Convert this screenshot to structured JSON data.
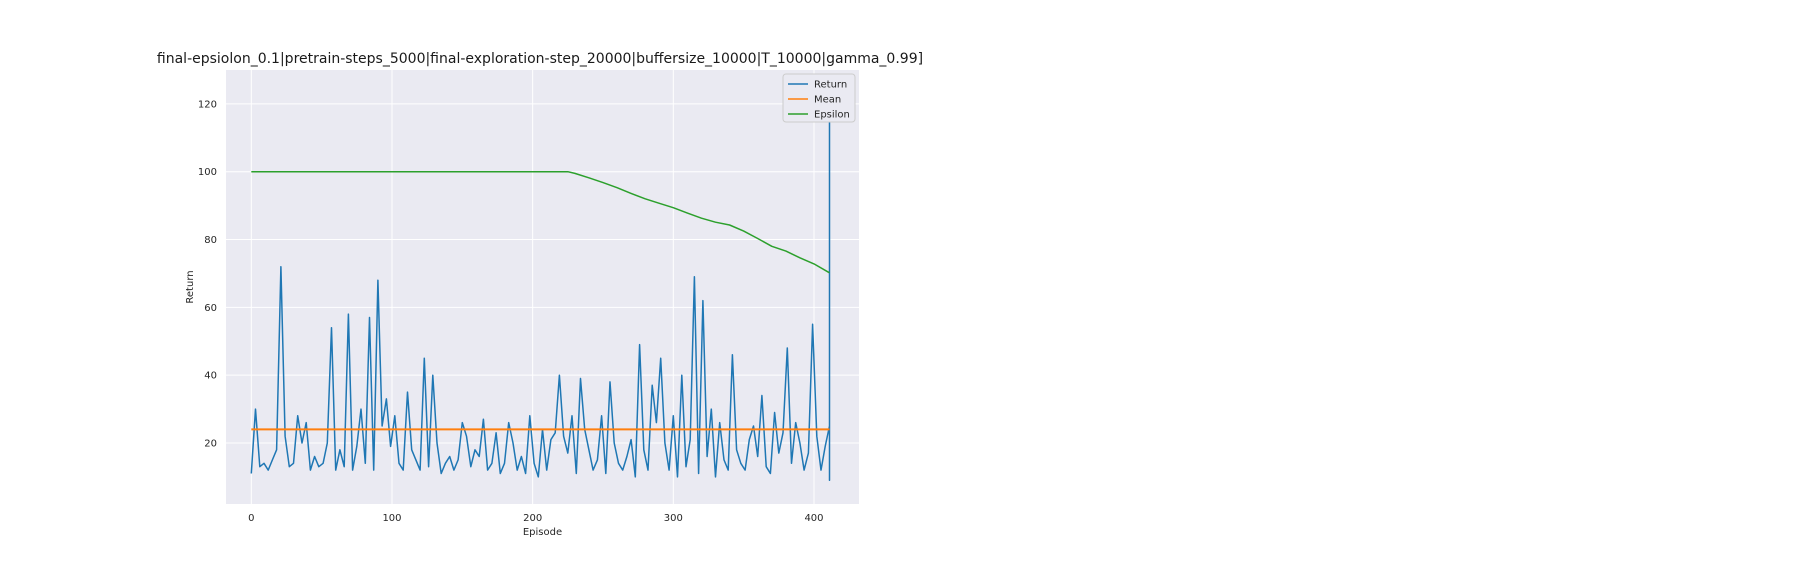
{
  "chart_data": {
    "type": "line",
    "title": "final-epsiolon_0.1|pretrain-steps_5000|final-exploration-step_20000|buffersize_10000|T_10000|gamma_0.99]",
    "xlabel": "Episode",
    "ylabel": "Return",
    "xlim": [
      -18,
      432
    ],
    "ylim": [
      2,
      130
    ],
    "xticks": [
      0,
      100,
      200,
      300,
      400
    ],
    "yticks": [
      20,
      40,
      60,
      80,
      100,
      120
    ],
    "grid": true,
    "legend_position": "top-right",
    "colors": {
      "background": "#eaeaf2",
      "grid": "#ffffff",
      "Return": "#1f77b4",
      "Mean": "#ff7f0e",
      "Epsilon": "#2ca02c"
    },
    "series": [
      {
        "name": "Return",
        "x_step": 3,
        "values": [
          11,
          30,
          13,
          14,
          12,
          15,
          18,
          72,
          22,
          13,
          14,
          28,
          20,
          26,
          12,
          16,
          13,
          14,
          20,
          54,
          12,
          18,
          13,
          58,
          12,
          19,
          30,
          14,
          57,
          12,
          68,
          25,
          33,
          19,
          28,
          14,
          12,
          35,
          18,
          15,
          12,
          45,
          13,
          40,
          20,
          11,
          14,
          16,
          12,
          15,
          26,
          22,
          13,
          18,
          16,
          27,
          12,
          14,
          23,
          11,
          14,
          26,
          20,
          12,
          16,
          11,
          28,
          14,
          10,
          24,
          12,
          21,
          23,
          40,
          22,
          17,
          28,
          11,
          39,
          24,
          18,
          12,
          15,
          28,
          11,
          38,
          20,
          14,
          12,
          16,
          21,
          10,
          49,
          18,
          12,
          37,
          26,
          45,
          20,
          12,
          28,
          10,
          40,
          13,
          21,
          69,
          11,
          62,
          16,
          30,
          10,
          26,
          15,
          12,
          46,
          18,
          14,
          12,
          21,
          25,
          16,
          34,
          13,
          11,
          29,
          17,
          23,
          48,
          14,
          26,
          20,
          12,
          17,
          55,
          22,
          12,
          19,
          25,
          11,
          33,
          14,
          21,
          18,
          12,
          19,
          24,
          15,
          11,
          20,
          34,
          11,
          38,
          17,
          14,
          42,
          23,
          13,
          17,
          11,
          27,
          99,
          21,
          12,
          43,
          18,
          53,
          11,
          28,
          20,
          33,
          11,
          18,
          16,
          25,
          21,
          12,
          19,
          46,
          14,
          11,
          23,
          18,
          15,
          80,
          17,
          12,
          22,
          32,
          11,
          20,
          15,
          28,
          67,
          13,
          71,
          24,
          87,
          13,
          30,
          16,
          17,
          62,
          11,
          25,
          20,
          43,
          14,
          32,
          13,
          18,
          21,
          11,
          26,
          15,
          23,
          14,
          29,
          11,
          62,
          15,
          20,
          24,
          12,
          31,
          18,
          52,
          13,
          15,
          60,
          11,
          27,
          16,
          38,
          14,
          22,
          10,
          27,
          51,
          22,
          35,
          11,
          24,
          26,
          12,
          44,
          18,
          23,
          124,
          16,
          48,
          21,
          26,
          43,
          18,
          65,
          14,
          18,
          48,
          27,
          12,
          30,
          17,
          55,
          22,
          9,
          97,
          21,
          18,
          14,
          37,
          20,
          50,
          13,
          16,
          11,
          20,
          30,
          68,
          23,
          42,
          15,
          82,
          25,
          14,
          54
        ]
      },
      {
        "name": "Mean",
        "x": [
          0,
          411
        ],
        "values": [
          24,
          24
        ]
      },
      {
        "name": "Epsilon",
        "x": [
          0,
          100,
          200,
          225,
          230,
          240,
          250,
          260,
          270,
          280,
          290,
          300,
          310,
          320,
          330,
          340,
          350,
          360,
          370,
          380,
          390,
          400,
          411
        ],
        "values": [
          100,
          100,
          100,
          100,
          99.5,
          98.2,
          96.8,
          95.3,
          93.6,
          92,
          90.7,
          89.4,
          87.8,
          86.3,
          85.1,
          84.3,
          82.5,
          80.3,
          78,
          76.6,
          74.6,
          72.8,
          70.2
        ]
      }
    ]
  }
}
